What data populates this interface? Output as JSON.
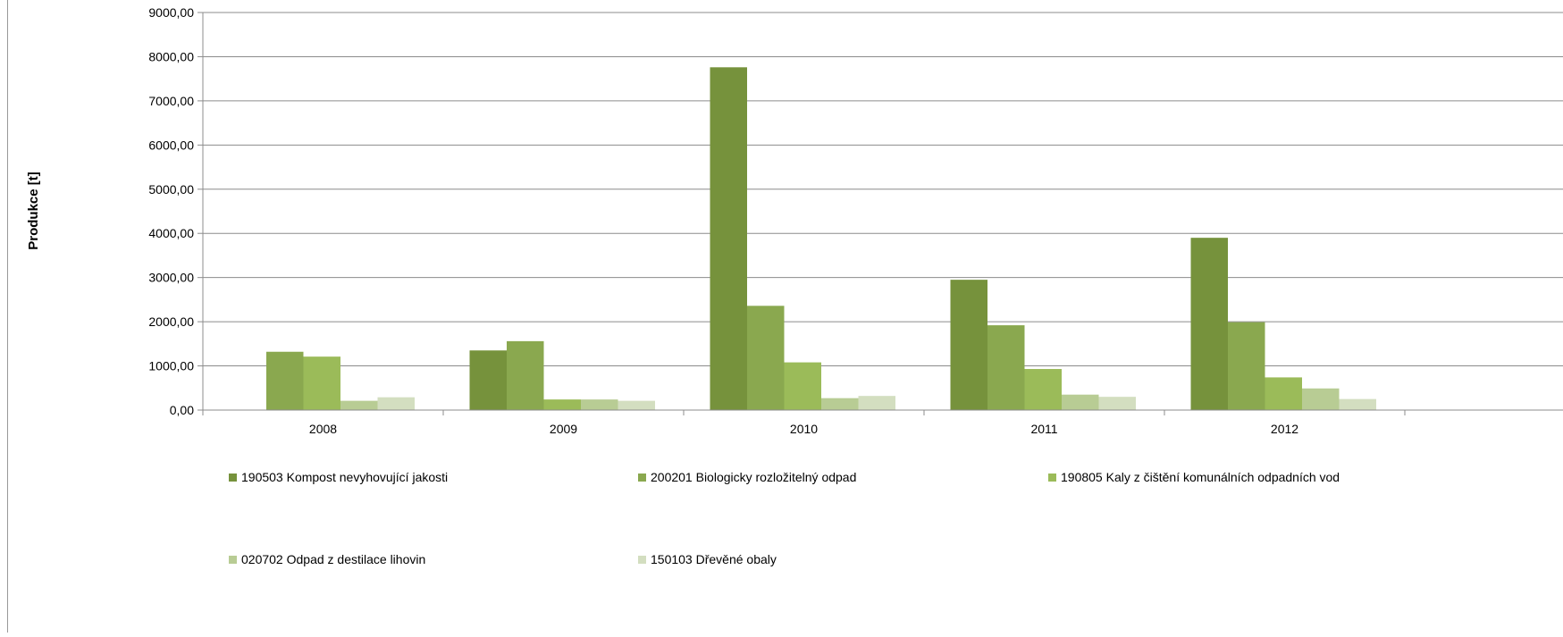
{
  "chart_data": {
    "type": "bar",
    "title": "",
    "xlabel": "",
    "ylabel": "Produkce [t]",
    "ylim": [
      0,
      9000
    ],
    "yticks": [
      "0,00",
      "1000,00",
      "2000,00",
      "3000,00",
      "4000,00",
      "5000,00",
      "6000,00",
      "7000,00",
      "8000,00",
      "9000,00"
    ],
    "grid": true,
    "legend_position": "bottom",
    "categories": [
      "2008",
      "2009",
      "2010",
      "2011",
      "2012"
    ],
    "series": [
      {
        "name": "190503 Kompost nevyhovující jakosti",
        "color": "#76923c",
        "values": [
          0,
          1350,
          7760,
          2950,
          3900
        ]
      },
      {
        "name": "200201 Biologicky rozložitelný odpad",
        "color": "#8aa84f",
        "values": [
          1320,
          1560,
          2360,
          1920,
          1990
        ]
      },
      {
        "name": "190805 Kaly z čištění komunálních odpadních vod",
        "color": "#9bbb59",
        "values": [
          1210,
          240,
          1080,
          930,
          740
        ]
      },
      {
        "name": "020702 Odpad z destilace lihovin",
        "color": "#b8cc94",
        "values": [
          210,
          240,
          270,
          350,
          490
        ]
      },
      {
        "name": "150103 Dřevěné obaly",
        "color": "#d3dec0",
        "values": [
          290,
          210,
          320,
          300,
          250
        ]
      }
    ]
  }
}
